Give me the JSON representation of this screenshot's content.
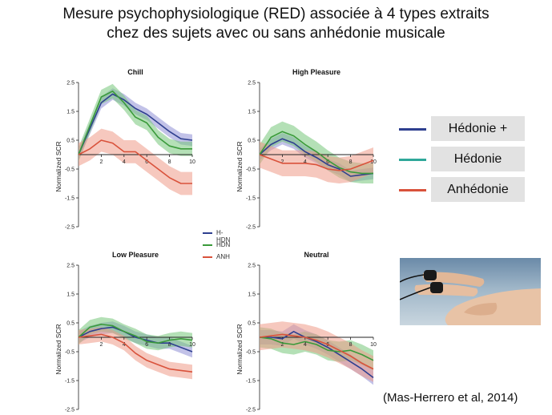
{
  "title_lines": [
    "Mesure psychophysiologique (RED) associée à 4 types extraits",
    "chez des sujets avec ou sans anhédonie musicale"
  ],
  "legend": [
    {
      "label": "Hédonie +",
      "color": "#2e3f8f"
    },
    {
      "label": "Hédonie",
      "color": "#2fa89a"
    },
    {
      "label": "Anhédonie",
      "color": "#d9523b"
    }
  ],
  "mini_legend": [
    {
      "label": "H-HDN",
      "color": "#2e3f8f"
    },
    {
      "label": "HDN",
      "color": "#3a9a3a"
    },
    {
      "label": "ANH",
      "color": "#d9523b"
    }
  ],
  "citation": "(Mas-Herrero et al, 2014)",
  "photo": {
    "description_icon": "finger-electrodes-photo"
  },
  "colors": {
    "h_hdn": "#2e3f8f",
    "hdn": "#3a9a3a",
    "anh": "#d9523b",
    "h_hdn_band": "#8f8fd6",
    "hdn_band": "#77c77a",
    "anh_band": "#ee9a88"
  },
  "chart_data": [
    {
      "type": "line",
      "title": "Chill",
      "ylabel": "Normalized SCR",
      "xlim": [
        0,
        10
      ],
      "ylim": [
        -2.5,
        2.5
      ],
      "xticks": [
        "2",
        "4",
        "6",
        "8",
        "10"
      ],
      "yticks": [
        "2.5",
        "1.5",
        "0.5",
        "-0.5",
        "-1.5",
        "-2.5"
      ],
      "x": [
        0,
        1,
        2,
        3,
        4,
        5,
        6,
        7,
        8,
        9,
        10
      ],
      "series": [
        {
          "name": "H-HDN",
          "values": [
            0,
            0.9,
            1.8,
            2.1,
            1.9,
            1.6,
            1.4,
            1.1,
            0.8,
            0.55,
            0.5
          ],
          "band": 0.2
        },
        {
          "name": "HDN",
          "values": [
            0,
            1.0,
            2.0,
            2.2,
            1.8,
            1.3,
            1.1,
            0.6,
            0.3,
            0.2,
            0.2
          ],
          "band": 0.25
        },
        {
          "name": "ANH",
          "values": [
            0,
            0.2,
            0.5,
            0.4,
            0.1,
            0.1,
            -0.2,
            -0.5,
            -0.8,
            -1.0,
            -1.0
          ],
          "band": 0.4
        }
      ]
    },
    {
      "type": "line",
      "title": "High Pleasure",
      "ylabel": "Normalized SCR",
      "xlim": [
        0,
        10
      ],
      "ylim": [
        -2.5,
        2.5
      ],
      "xticks": [
        "2",
        "4",
        "6",
        "8",
        "10"
      ],
      "yticks": [
        "2.5",
        "1.5",
        "0.5",
        "-0.5",
        "-1.5",
        "-2.5"
      ],
      "x": [
        0,
        1,
        2,
        3,
        4,
        5,
        6,
        7,
        8,
        9,
        10
      ],
      "series": [
        {
          "name": "H-HDN",
          "values": [
            0,
            0.35,
            0.55,
            0.4,
            0.1,
            -0.1,
            -0.35,
            -0.5,
            -0.75,
            -0.7,
            -0.65
          ],
          "band": 0.2
        },
        {
          "name": "HDN",
          "values": [
            0,
            0.6,
            0.8,
            0.65,
            0.35,
            0.1,
            -0.2,
            -0.45,
            -0.6,
            -0.65,
            -0.65
          ],
          "band": 0.35
        },
        {
          "name": "ANH",
          "values": [
            0,
            -0.15,
            -0.3,
            -0.3,
            -0.3,
            -0.35,
            -0.5,
            -0.55,
            -0.5,
            -0.35,
            -0.2
          ],
          "band": 0.45
        }
      ]
    },
    {
      "type": "line",
      "title": "Low Pleasure",
      "ylabel": "Normalized SCR",
      "xlim": [
        0,
        10
      ],
      "ylim": [
        -2.5,
        2.5
      ],
      "xticks": [
        "2",
        "4",
        "6",
        "8",
        "10"
      ],
      "yticks": [
        "2.5",
        "1.5",
        "0.5",
        "-0.5",
        "-1.5",
        "-2.5"
      ],
      "x": [
        0,
        1,
        2,
        3,
        4,
        5,
        6,
        7,
        8,
        9,
        10
      ],
      "series": [
        {
          "name": "H-HDN",
          "values": [
            0,
            0.2,
            0.3,
            0.35,
            0.2,
            0.0,
            -0.1,
            -0.2,
            -0.2,
            -0.35,
            -0.5
          ],
          "band": 0.2
        },
        {
          "name": "HDN",
          "values": [
            0,
            0.35,
            0.45,
            0.4,
            0.2,
            0.05,
            -0.15,
            -0.2,
            -0.1,
            -0.05,
            -0.1
          ],
          "band": 0.25
        },
        {
          "name": "ANH",
          "values": [
            0,
            0.05,
            0.1,
            0.0,
            -0.2,
            -0.55,
            -0.8,
            -0.95,
            -1.1,
            -1.15,
            -1.2
          ],
          "band": 0.25
        }
      ]
    },
    {
      "type": "line",
      "title": "Neutral",
      "ylabel": "Normalized SCR",
      "xlim": [
        0,
        10
      ],
      "ylim": [
        -2.5,
        2.5
      ],
      "xticks": [
        "2",
        "4",
        "6",
        "8",
        "10"
      ],
      "yticks": [
        "2.5",
        "1.5",
        "0.5",
        "-0.5",
        "-1.5",
        "-2.5"
      ],
      "x": [
        0,
        1,
        2,
        3,
        4,
        5,
        6,
        7,
        8,
        9,
        10
      ],
      "series": [
        {
          "name": "H-HDN",
          "values": [
            0,
            0.0,
            -0.05,
            0.2,
            0.0,
            -0.15,
            -0.35,
            -0.6,
            -0.85,
            -1.1,
            -1.4
          ],
          "band": 0.25
        },
        {
          "name": "HDN",
          "values": [
            0,
            -0.05,
            -0.2,
            -0.25,
            -0.15,
            -0.25,
            -0.45,
            -0.5,
            -0.45,
            -0.6,
            -0.8
          ],
          "band": 0.35
        },
        {
          "name": "ANH",
          "values": [
            0,
            0.05,
            0.1,
            0.05,
            0.0,
            -0.1,
            -0.25,
            -0.45,
            -0.65,
            -0.9,
            -1.1
          ],
          "band": 0.45
        }
      ]
    }
  ]
}
